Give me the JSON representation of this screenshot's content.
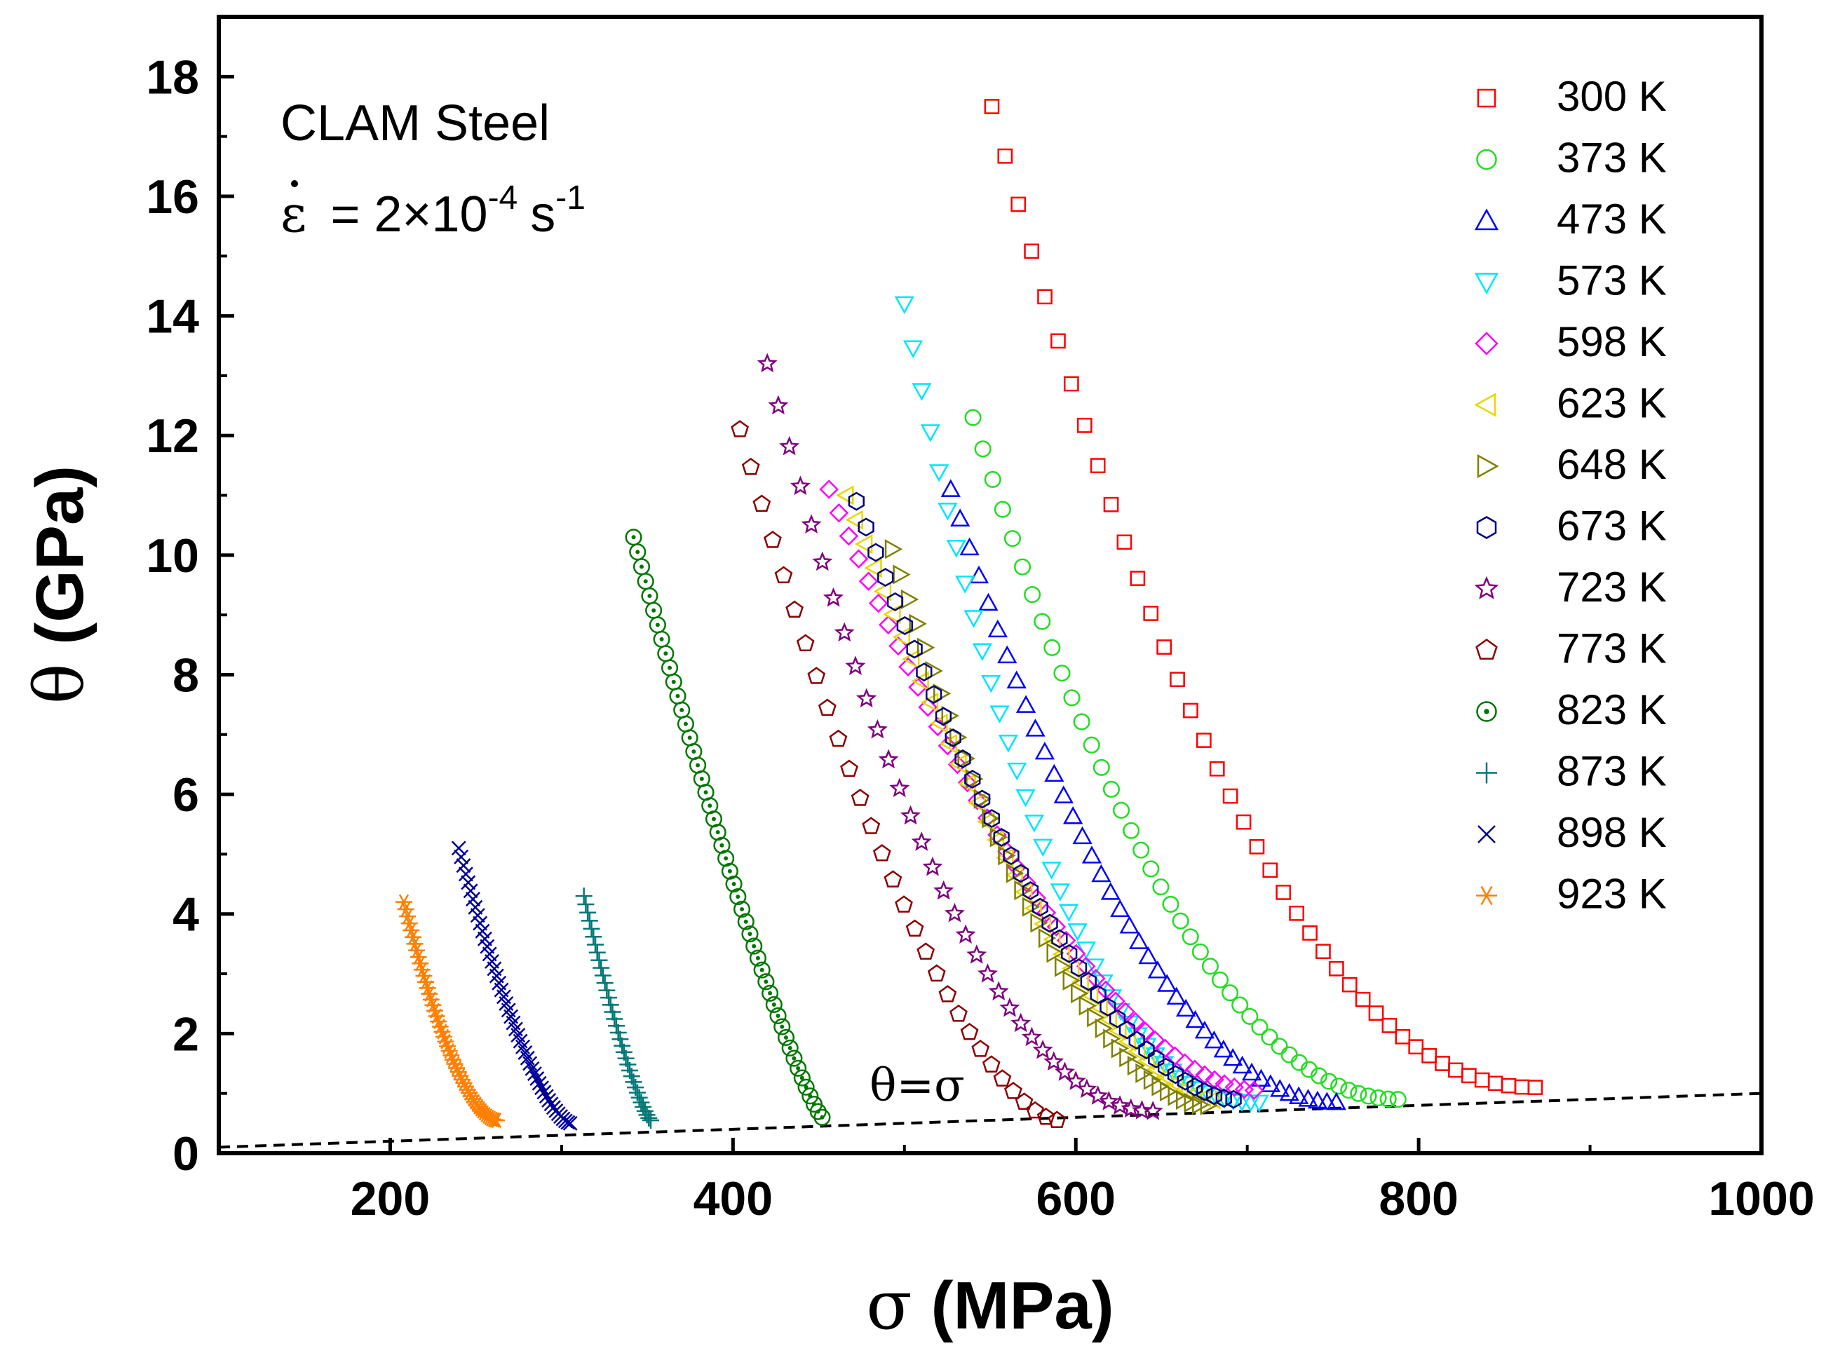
{
  "chart_data": {
    "type": "scatter",
    "title": "",
    "xlabel_symbol": "σ",
    "xlabel_unit": "(MPa)",
    "ylabel_symbol": "θ",
    "ylabel_unit": "(GPa)",
    "xlim": [
      100,
      1000
    ],
    "ylim": [
      0,
      19
    ],
    "xticks": [
      200,
      400,
      600,
      800,
      1000
    ],
    "yticks": [
      0,
      2,
      4,
      6,
      8,
      10,
      12,
      14,
      16,
      18
    ],
    "legend_position": "top-right",
    "annotation_material": "CLAM Steel",
    "annotation_rate_symbol": "ε",
    "annotation_rate_eq": "= 2×10",
    "annotation_rate_exp": "-4",
    "annotation_rate_unit": "s",
    "annotation_rate_unit_exp": "-1",
    "reference_line": {
      "label": "θ=σ",
      "x": [
        100,
        1000
      ],
      "y": [
        0.1,
        1.0
      ]
    },
    "series": [
      {
        "name": "300 K",
        "color": "#ff0000",
        "marker": "square",
        "x_start": 551,
        "y_start": 17.5,
        "x_end": 868,
        "y_end": 1.1,
        "n": 42,
        "curve": 2.1
      },
      {
        "name": "373 K",
        "color": "#22dd22",
        "marker": "circle",
        "x_start": 540,
        "y_start": 12.3,
        "x_end": 788,
        "y_end": 0.9,
        "n": 44,
        "curve": 2.0
      },
      {
        "name": "473 K",
        "color": "#0000ff",
        "marker": "triangle-up",
        "x_start": 527,
        "y_start": 11.1,
        "x_end": 752,
        "y_end": 0.85,
        "n": 42,
        "curve": 2.0
      },
      {
        "name": "573 K",
        "color": "#00e5ff",
        "marker": "triangle-down",
        "x_start": 500,
        "y_start": 14.2,
        "x_end": 707,
        "y_end": 0.85,
        "n": 42,
        "curve": 2.3
      },
      {
        "name": "598 K",
        "color": "#ff00ff",
        "marker": "diamond",
        "x_start": 456,
        "y_start": 11.1,
        "x_end": 704,
        "y_end": 1.05,
        "n": 44,
        "curve": 1.7
      },
      {
        "name": "623 K",
        "color": "#e6d800",
        "marker": "triangle-left",
        "x_start": 466,
        "y_start": 11.0,
        "x_end": 680,
        "y_end": 0.9,
        "n": 40,
        "curve": 1.6
      },
      {
        "name": "648 K",
        "color": "#808000",
        "marker": "triangle-right",
        "x_start": 493,
        "y_start": 10.1,
        "x_end": 677,
        "y_end": 0.8,
        "n": 40,
        "curve": 1.8
      },
      {
        "name": "673 K",
        "color": "#000080",
        "marker": "hexagon",
        "x_start": 472,
        "y_start": 10.9,
        "x_end": 692,
        "y_end": 0.9,
        "n": 40,
        "curve": 1.7
      },
      {
        "name": "723 K",
        "color": "#800080",
        "marker": "star",
        "x_start": 420,
        "y_start": 13.2,
        "x_end": 645,
        "y_end": 0.7,
        "n": 36,
        "curve": 2.0
      },
      {
        "name": "773 K",
        "color": "#8b0000",
        "marker": "pentagon",
        "x_start": 404,
        "y_start": 12.1,
        "x_end": 589,
        "y_end": 0.55,
        "n": 30,
        "curve": 1.6
      },
      {
        "name": "823 K",
        "color": "#007700",
        "marker": "circle-dot",
        "x_start": 342,
        "y_start": 10.3,
        "x_end": 452,
        "y_end": 0.6,
        "n": 48,
        "curve": 1.2
      },
      {
        "name": "873 K",
        "color": "#007777",
        "marker": "plus",
        "x_start": 313,
        "y_start": 4.3,
        "x_end": 352,
        "y_end": 0.55,
        "n": 36,
        "curve": 1.3
      },
      {
        "name": "898 K",
        "color": "#000099",
        "marker": "cross",
        "x_start": 240,
        "y_start": 5.1,
        "x_end": 305,
        "y_end": 0.5,
        "n": 48,
        "curve": 1.5
      },
      {
        "name": "923 K",
        "color": "#ff7f00",
        "marker": "asterisk",
        "x_start": 208,
        "y_start": 4.2,
        "x_end": 262,
        "y_end": 0.55,
        "n": 52,
        "curve": 1.7
      }
    ]
  }
}
